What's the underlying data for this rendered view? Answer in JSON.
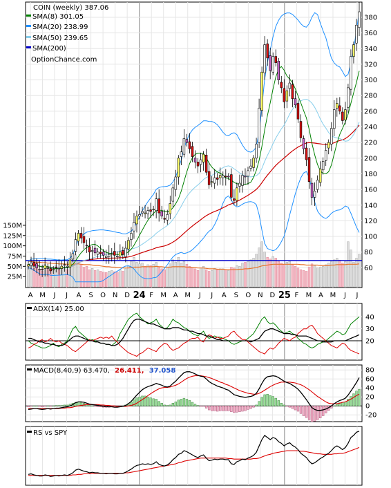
{
  "chart_data": {
    "type": "candlestick",
    "ticker_label": "COIN (weekly) 387.06",
    "website": "OptionChance.com",
    "x_labels": [
      "A",
      "M",
      "J",
      "J",
      "A",
      "S",
      "O",
      "N",
      "D",
      "24",
      "F",
      "M",
      "A",
      "M",
      "J",
      "J",
      "A",
      "S",
      "O",
      "N",
      "D",
      "25",
      "F",
      "M",
      "A",
      "M",
      "J",
      "J"
    ],
    "price_panel": {
      "yticks": [
        60,
        80,
        100,
        120,
        140,
        160,
        180,
        200,
        220,
        240,
        260,
        280,
        300,
        320,
        340,
        360,
        380
      ],
      "ylim": [
        40,
        395
      ],
      "legend": [
        {
          "label": "SMA(8) 301.05",
          "color": "#008000"
        },
        {
          "label": "SMA(20) 238.99",
          "color": "#1e90ff"
        },
        {
          "label": "SMA(50) 239.65",
          "color": "#87ceeb"
        },
        {
          "label": "SMA(200)",
          "color": "#0000cc"
        }
      ],
      "closes": [
        64,
        66,
        62,
        60,
        58,
        57,
        63,
        60,
        56,
        58,
        60,
        59,
        62,
        64,
        62,
        70,
        78,
        96,
        104,
        98,
        92,
        88,
        80,
        82,
        79,
        80,
        78,
        76,
        75,
        77,
        78,
        76,
        75,
        80,
        77,
        85,
        95,
        104,
        118,
        126,
        128,
        132,
        130,
        133,
        132,
        135,
        148,
        130,
        126,
        122,
        128,
        142,
        162,
        176,
        200,
        208,
        225,
        220,
        212,
        202,
        195,
        190,
        198,
        205,
        182,
        166,
        170,
        175,
        173,
        178,
        178,
        176,
        176,
        150,
        146,
        162,
        168,
        178,
        176,
        184,
        190,
        200,
        218,
        264,
        310,
        345,
        328,
        312,
        330,
        322,
        300,
        290,
        272,
        286,
        296,
        276,
        268,
        250,
        226,
        212,
        198,
        170,
        150,
        158,
        172,
        186,
        196,
        210,
        220,
        238,
        262,
        270,
        260,
        248,
        262,
        290,
        330,
        345,
        370,
        387
      ]
    },
    "volume_panel": {
      "yticks": [
        "25M",
        "50M",
        "75M",
        "100M",
        "125M",
        "150M"
      ],
      "ytick_values": [
        25,
        50,
        75,
        100,
        125,
        150
      ],
      "ylim": [
        0,
        160
      ],
      "volumes": [
        48,
        52,
        45,
        60,
        42,
        38,
        55,
        50,
        40,
        45,
        52,
        40,
        44,
        46,
        42,
        60,
        70,
        78,
        65,
        55,
        48,
        50,
        42,
        45,
        40,
        42,
        38,
        36,
        35,
        38,
        40,
        37,
        36,
        42,
        38,
        44,
        52,
        62,
        72,
        60,
        56,
        58,
        50,
        54,
        52,
        55,
        60,
        48,
        44,
        42,
        48,
        56,
        66,
        60,
        72,
        58,
        62,
        55,
        50,
        46,
        44,
        40,
        46,
        50,
        42,
        38,
        40,
        45,
        42,
        44,
        44,
        42,
        40,
        48,
        46,
        52,
        50,
        58,
        60,
        62,
        66,
        70,
        80,
        95,
        110,
        85,
        72,
        68,
        74,
        70,
        62,
        58,
        55,
        60,
        62,
        54,
        50,
        46,
        42,
        40,
        38,
        48,
        56,
        52,
        46,
        48,
        50,
        54,
        58,
        62,
        66,
        70,
        65,
        58,
        62,
        110,
        90,
        60,
        70,
        80
      ],
      "avg_volume": [
        62,
        62,
        61,
        60,
        60,
        59,
        59,
        58,
        58,
        57,
        57,
        56,
        56,
        56,
        55,
        55,
        55,
        56,
        56,
        55,
        54,
        54,
        54,
        53,
        52,
        52,
        51,
        50,
        49,
        49,
        48,
        48,
        47,
        47,
        46,
        46,
        46,
        47,
        48,
        48,
        48,
        49,
        49,
        49,
        49,
        49,
        50,
        49,
        49,
        48,
        48,
        48,
        49,
        49,
        49,
        49,
        49,
        48,
        48,
        47,
        47,
        46,
        46,
        46,
        45,
        44,
        44,
        44,
        43,
        43,
        43,
        42,
        42,
        42,
        42,
        42,
        43,
        43,
        44,
        44,
        45,
        46,
        47,
        49,
        51,
        52,
        53,
        54,
        55,
        55,
        55,
        55,
        55,
        55,
        55,
        55,
        55,
        55,
        54,
        54,
        53,
        53,
        53,
        53,
        53,
        52,
        52,
        52,
        52,
        53,
        53,
        54,
        54,
        54,
        54,
        55,
        55,
        55,
        55,
        56
      ]
    },
    "adx_panel": {
      "label": "ADX(14) 25.00",
      "yticks": [
        20,
        30,
        40
      ],
      "ylim": [
        5,
        50
      ],
      "adx": [
        22,
        22,
        21,
        20,
        19,
        19,
        18,
        18,
        17,
        17,
        16,
        16,
        16,
        17,
        19,
        21,
        23,
        24,
        24,
        23,
        22,
        21,
        20,
        20,
        19,
        19,
        18,
        18,
        17,
        17,
        16,
        16,
        17,
        19,
        22,
        26,
        30,
        34,
        37,
        38,
        38,
        37,
        36,
        35,
        34,
        34,
        33,
        32,
        31,
        30,
        30,
        30,
        31,
        31,
        31,
        30,
        29,
        29,
        28,
        28,
        27,
        26,
        26,
        25,
        24,
        24,
        23,
        22,
        21,
        21,
        20,
        20,
        20,
        20,
        20,
        20,
        20,
        20,
        20,
        20,
        19,
        20,
        21,
        22,
        25,
        28,
        29,
        30,
        30,
        29,
        28,
        27,
        26,
        26,
        26,
        25,
        25,
        24,
        24,
        24,
        24,
        23,
        22,
        21,
        20,
        20,
        19,
        19,
        19,
        19,
        20,
        20,
        20,
        20,
        20,
        21,
        22,
        23,
        24,
        25
      ],
      "plus_di": [
        20,
        18,
        17,
        16,
        15,
        14,
        14,
        15,
        16,
        18,
        16,
        15,
        17,
        18,
        20,
        25,
        30,
        32,
        28,
        26,
        24,
        22,
        20,
        21,
        20,
        19,
        18,
        18,
        17,
        17,
        16,
        18,
        20,
        26,
        30,
        34,
        38,
        40,
        42,
        43,
        40,
        38,
        36,
        34,
        35,
        36,
        38,
        34,
        32,
        30,
        31,
        34,
        38,
        36,
        35,
        33,
        31,
        30,
        28,
        26,
        25,
        24,
        26,
        28,
        24,
        22,
        23,
        24,
        23,
        23,
        22,
        21,
        20,
        18,
        17,
        18,
        19,
        20,
        20,
        22,
        24,
        26,
        30,
        34,
        38,
        40,
        36,
        34,
        35,
        33,
        30,
        28,
        26,
        27,
        28,
        26,
        25,
        22,
        20,
        18,
        17,
        15,
        14,
        15,
        17,
        18,
        19,
        20,
        22,
        24,
        26,
        28,
        27,
        25,
        26,
        30,
        34,
        36,
        38,
        40
      ],
      "minus_di": [
        14,
        15,
        17,
        18,
        20,
        21,
        19,
        20,
        22,
        20,
        19,
        20,
        18,
        17,
        16,
        14,
        12,
        11,
        13,
        15,
        17,
        19,
        21,
        20,
        21,
        22,
        23,
        22,
        23,
        22,
        24,
        21,
        19,
        16,
        14,
        12,
        10,
        9,
        8,
        7,
        9,
        10,
        12,
        14,
        13,
        12,
        11,
        14,
        16,
        18,
        17,
        14,
        12,
        13,
        14,
        16,
        18,
        19,
        21,
        22,
        22,
        23,
        20,
        19,
        23,
        25,
        24,
        22,
        23,
        22,
        22,
        23,
        24,
        27,
        28,
        25,
        23,
        21,
        21,
        19,
        17,
        15,
        13,
        11,
        10,
        9,
        12,
        14,
        13,
        15,
        18,
        20,
        22,
        21,
        20,
        22,
        23,
        26,
        28,
        30,
        30,
        32,
        33,
        30,
        26,
        24,
        22,
        20,
        18,
        16,
        15,
        14,
        16,
        18,
        17,
        14,
        12,
        11,
        10,
        9
      ]
    },
    "macd_panel": {
      "label_prefix": "MACD(8,40,9) 63.470,",
      "label_signal": "26.411,",
      "label_hist": "37.058",
      "signal_color": "#cc0000",
      "hist_color": "#2255cc",
      "yticks": [
        -20,
        0,
        20,
        40,
        60,
        80
      ],
      "ylim": [
        -32,
        88
      ],
      "macd": [
        -8,
        -7,
        -6,
        -6,
        -7,
        -8,
        -7,
        -6,
        -7,
        -6,
        -5,
        -5,
        -4,
        -3,
        -2,
        0,
        3,
        7,
        9,
        9,
        8,
        6,
        4,
        3,
        2,
        1,
        0,
        -1,
        -2,
        -2,
        -2,
        -3,
        -3,
        -2,
        -1,
        1,
        5,
        10,
        17,
        24,
        30,
        36,
        40,
        43,
        45,
        47,
        50,
        48,
        46,
        43,
        42,
        44,
        50,
        55,
        62,
        68,
        74,
        76,
        76,
        74,
        71,
        68,
        66,
        65,
        60,
        54,
        50,
        47,
        44,
        42,
        40,
        37,
        35,
        30,
        25,
        23,
        21,
        20,
        19,
        20,
        21,
        23,
        28,
        38,
        50,
        60,
        65,
        66,
        67,
        66,
        63,
        59,
        55,
        52,
        50,
        46,
        42,
        37,
        30,
        22,
        14,
        5,
        -4,
        -8,
        -10,
        -10,
        -9,
        -7,
        -4,
        0,
        5,
        9,
        12,
        14,
        17,
        24,
        33,
        42,
        52,
        63
      ],
      "signal": [
        -6,
        -6,
        -6,
        -6,
        -6,
        -6,
        -6,
        -6,
        -6,
        -6,
        -6,
        -6,
        -5,
        -5,
        -4,
        -4,
        -3,
        -1,
        0,
        1,
        2,
        3,
        3,
        3,
        3,
        3,
        2,
        2,
        1,
        1,
        0,
        0,
        -1,
        -1,
        -1,
        -1,
        0,
        1,
        3,
        6,
        10,
        14,
        18,
        23,
        27,
        31,
        35,
        38,
        40,
        41,
        41,
        42,
        44,
        46,
        49,
        53,
        57,
        61,
        64,
        66,
        67,
        67,
        67,
        66,
        65,
        63,
        61,
        58,
        56,
        53,
        51,
        48,
        46,
        43,
        40,
        37,
        34,
        32,
        30,
        28,
        27,
        26,
        26,
        28,
        31,
        35,
        39,
        43,
        46,
        49,
        51,
        53,
        53,
        53,
        53,
        52,
        51,
        49,
        47,
        44,
        40,
        36,
        31,
        26,
        21,
        17,
        13,
        9,
        6,
        5,
        5,
        5,
        6,
        8,
        9,
        12,
        15,
        19,
        23,
        26
      ],
      "hist": [
        -2,
        -1,
        0,
        0,
        -1,
        -2,
        -1,
        0,
        -1,
        0,
        1,
        1,
        1,
        2,
        2,
        4,
        6,
        8,
        9,
        8,
        6,
        3,
        1,
        0,
        -1,
        -2,
        -2,
        -3,
        -3,
        -3,
        -2,
        -3,
        -2,
        -1,
        0,
        2,
        5,
        9,
        14,
        18,
        20,
        22,
        22,
        20,
        18,
        16,
        15,
        10,
        6,
        2,
        1,
        2,
        6,
        9,
        13,
        15,
        17,
        15,
        12,
        8,
        4,
        1,
        -1,
        -1,
        -5,
        -9,
        -11,
        -11,
        -12,
        -11,
        -11,
        -11,
        -11,
        -13,
        -15,
        -14,
        -13,
        -12,
        -11,
        -8,
        -6,
        -3,
        2,
        10,
        19,
        25,
        26,
        23,
        21,
        17,
        12,
        6,
        2,
        -1,
        -3,
        -6,
        -9,
        -12,
        -17,
        -22,
        -26,
        -31,
        -35,
        -34,
        -31,
        -27,
        -22,
        -16,
        -10,
        -5,
        0,
        4,
        7,
        8,
        9,
        15,
        21,
        27,
        33,
        37
      ]
    },
    "rs_panel": {
      "label": "RS vs SPY",
      "rs": [
        18,
        19,
        17,
        16,
        15,
        15,
        17,
        16,
        14,
        15,
        16,
        15,
        16,
        17,
        16,
        18,
        21,
        26,
        28,
        26,
        24,
        23,
        21,
        22,
        21,
        21,
        20,
        20,
        19,
        20,
        20,
        19,
        19,
        20,
        20,
        22,
        25,
        28,
        32,
        35,
        36,
        38,
        37,
        38,
        37,
        38,
        42,
        37,
        35,
        34,
        36,
        40,
        46,
        50,
        56,
        58,
        63,
        61,
        58,
        55,
        52,
        50,
        53,
        55,
        49,
        44,
        45,
        47,
        46,
        47,
        47,
        46,
        46,
        38,
        37,
        42,
        44,
        47,
        46,
        49,
        51,
        54,
        60,
        72,
        84,
        92,
        88,
        84,
        88,
        86,
        80,
        77,
        72,
        76,
        78,
        73,
        70,
        65,
        58,
        54,
        50,
        43,
        38,
        40,
        44,
        48,
        51,
        55,
        58,
        63,
        69,
        72,
        69,
        65,
        69,
        77,
        88,
        92,
        98,
        100
      ],
      "rs_ma": [
        16,
        16,
        16,
        16,
        16,
        16,
        16,
        16,
        16,
        16,
        16,
        16,
        16,
        16,
        16,
        16,
        17,
        17,
        18,
        18,
        19,
        19,
        19,
        20,
        20,
        20,
        20,
        20,
        20,
        20,
        20,
        20,
        20,
        20,
        20,
        21,
        21,
        22,
        23,
        24,
        25,
        26,
        27,
        28,
        29,
        30,
        31,
        32,
        33,
        34,
        35,
        36,
        37,
        38,
        40,
        41,
        43,
        44,
        45,
        46,
        47,
        48,
        49,
        49,
        49,
        49,
        49,
        49,
        49,
        49,
        49,
        49,
        48,
        48,
        47,
        47,
        47,
        47,
        47,
        47,
        47,
        48,
        48,
        49,
        51,
        53,
        55,
        56,
        58,
        59,
        60,
        61,
        62,
        63,
        63,
        63,
        63,
        63,
        62,
        62,
        61,
        60,
        59,
        58,
        57,
        57,
        56,
        56,
        56,
        56,
        57,
        57,
        58,
        58,
        59,
        61,
        63,
        65,
        67,
        69
      ]
    }
  }
}
